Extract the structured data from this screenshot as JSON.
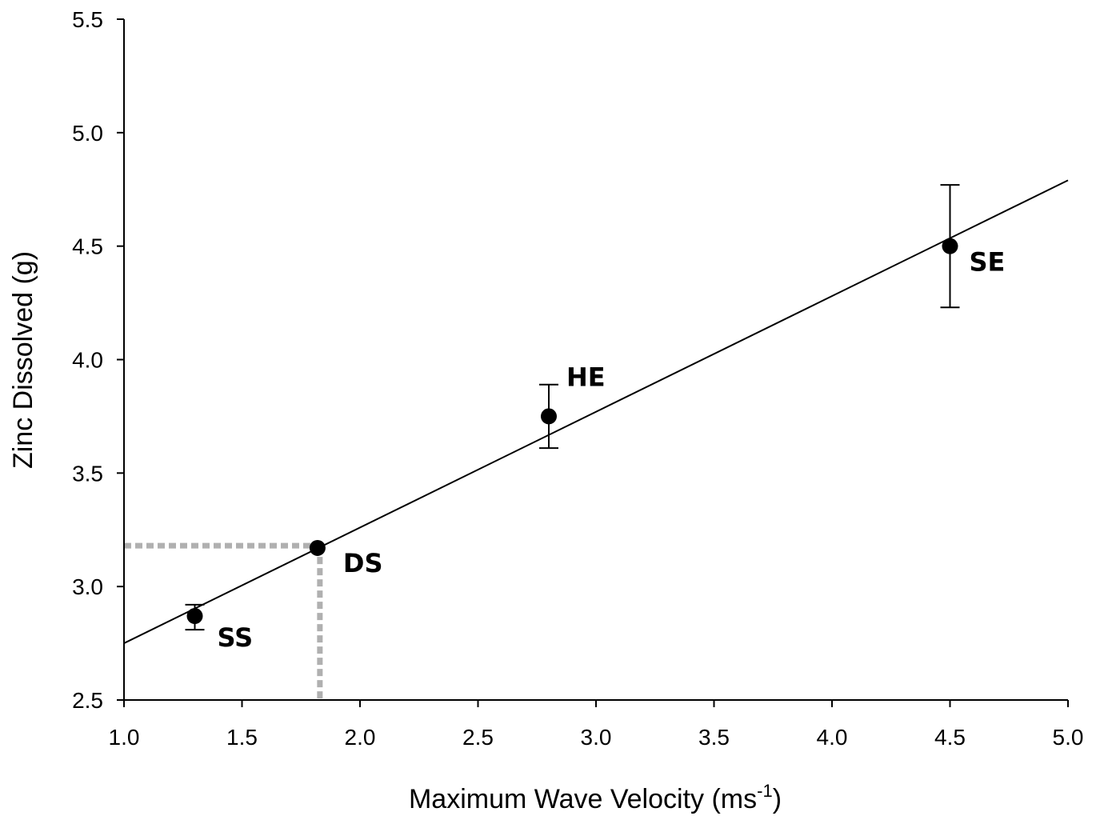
{
  "chart_data": {
    "type": "scatter",
    "title": "",
    "xlabel": "Maximum Wave Velocity (ms",
    "xlabel_sup": "-1",
    "xlabel_suffix": ")",
    "ylabel": "Zinc Dissolved (g)",
    "xlim": [
      1.0,
      5.0
    ],
    "ylim": [
      2.5,
      5.5
    ],
    "x_ticks": [
      "1.0",
      "1.5",
      "2.0",
      "2.5",
      "3.0",
      "3.5",
      "4.0",
      "4.5",
      "5.0"
    ],
    "y_ticks": [
      "2.5",
      "3.0",
      "3.5",
      "4.0",
      "4.5",
      "5.0",
      "5.5"
    ],
    "grid": false,
    "legend": "none",
    "points": [
      {
        "label": "SS",
        "x": 1.3,
        "y": 2.87,
        "err_low": 2.81,
        "err_high": 2.92
      },
      {
        "label": "DS",
        "x": 1.82,
        "y": 3.17,
        "err_low": 3.17,
        "err_high": 3.17
      },
      {
        "label": "HE",
        "x": 2.8,
        "y": 3.75,
        "err_low": 3.61,
        "err_high": 3.89
      },
      {
        "label": "SE",
        "x": 4.5,
        "y": 4.5,
        "err_low": 4.23,
        "err_high": 4.77
      }
    ],
    "fit_line": {
      "x": [
        1.0,
        5.0
      ],
      "y": [
        2.75,
        4.79
      ]
    },
    "reference_lines": {
      "x": 1.83,
      "y": 3.18,
      "color": "#b0b0b0",
      "style": "dotted"
    },
    "marker_color": "#000000",
    "line_color": "#000000"
  }
}
